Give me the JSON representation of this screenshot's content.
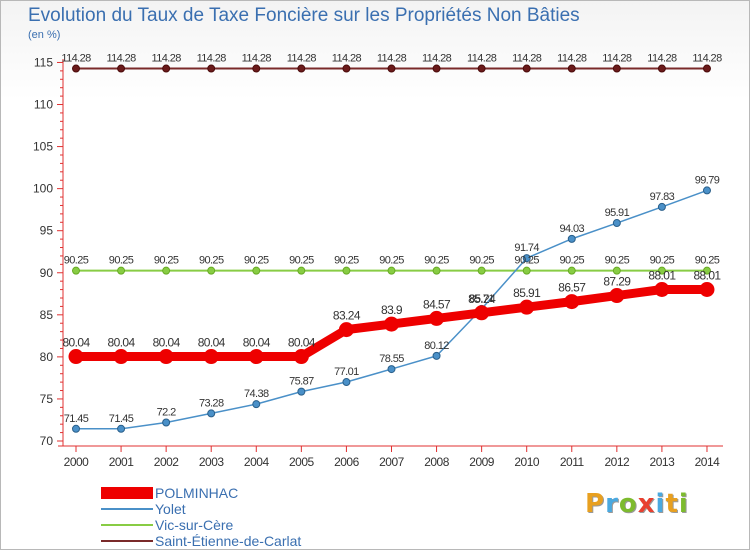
{
  "title": "Evolution du Taux de Taxe Foncière sur les Propriétés Non Bâties",
  "unit_label": "(en %)",
  "logo": {
    "text": "Proxiti",
    "letters": [
      "P",
      "r",
      "o",
      "x",
      "i",
      "t",
      "i"
    ],
    "colors": [
      "#e8a020",
      "#4aa9e0",
      "#7dbb2e",
      "#e84030",
      "#4aa9e0",
      "#e8a020",
      "#7dbb2e"
    ]
  },
  "chart_data": {
    "type": "line",
    "title": "Evolution du Taux de Taxe Foncière sur les Propriétés Non Bâties",
    "xlabel": "",
    "ylabel": "(en %)",
    "ylim": [
      70,
      115
    ],
    "yticks": [
      70,
      75,
      80,
      85,
      90,
      95,
      100,
      105,
      110,
      115
    ],
    "grid": false,
    "legend_position": "bottom-left",
    "categories": [
      "2000",
      "2001",
      "2002",
      "2003",
      "2004",
      "2005",
      "2006",
      "2007",
      "2008",
      "2009",
      "2010",
      "2011",
      "2012",
      "2013",
      "2014"
    ],
    "series": [
      {
        "name": "POLMINHAC",
        "color": "#ee0000",
        "values": [
          80.04,
          80.04,
          80.04,
          80.04,
          80.04,
          80.04,
          83.24,
          83.9,
          84.57,
          85.24,
          85.91,
          86.57,
          87.29,
          88.01,
          88.01
        ],
        "labels": [
          "80.04",
          "80.04",
          "80.04",
          "80.04",
          "80.04",
          "80.04",
          "83.24",
          "83.9",
          "84.57",
          "85.24",
          "85.91",
          "86.57",
          "87.29",
          "88.01",
          "88.01"
        ]
      },
      {
        "name": "Yolet",
        "color": "#4a90c8",
        "values": [
          71.45,
          71.45,
          72.2,
          73.28,
          74.38,
          75.87,
          77.01,
          78.55,
          80.12,
          85.71,
          91.74,
          94.03,
          95.91,
          97.83,
          99.79
        ],
        "labels": [
          "71.45",
          "71.45",
          "72.2",
          "73.28",
          "74.38",
          "75.87",
          "77.01",
          "78.55",
          "80.12",
          "85.71",
          "91.74",
          "94.03",
          "95.91",
          "97.83",
          "99.79"
        ]
      },
      {
        "name": "Vic-sur-Cère",
        "color": "#88cc44",
        "values": [
          90.25,
          90.25,
          90.25,
          90.25,
          90.25,
          90.25,
          90.25,
          90.25,
          90.25,
          90.25,
          90.25,
          90.25,
          90.25,
          90.25,
          90.25
        ],
        "labels": [
          "90.25",
          "90.25",
          "90.25",
          "90.25",
          "90.25",
          "90.25",
          "90.25",
          "90.25",
          "90.25",
          "90.25",
          "90.25",
          "90.25",
          "90.25",
          "90.25",
          "90.25"
        ]
      },
      {
        "name": "Saint-Étienne-de-Carlat",
        "color": "#7a2a2a",
        "values": [
          114.28,
          114.28,
          114.28,
          114.28,
          114.28,
          114.28,
          114.28,
          114.28,
          114.28,
          114.28,
          114.28,
          114.28,
          114.28,
          114.28,
          114.28
        ],
        "labels": [
          "114.28",
          "114.28",
          "114.28",
          "114.28",
          "114.28",
          "114.28",
          "114.28",
          "114.28",
          "114.28",
          "114.28",
          "114.28",
          "114.28",
          "114.28",
          "114.28",
          "114.28"
        ]
      }
    ]
  }
}
